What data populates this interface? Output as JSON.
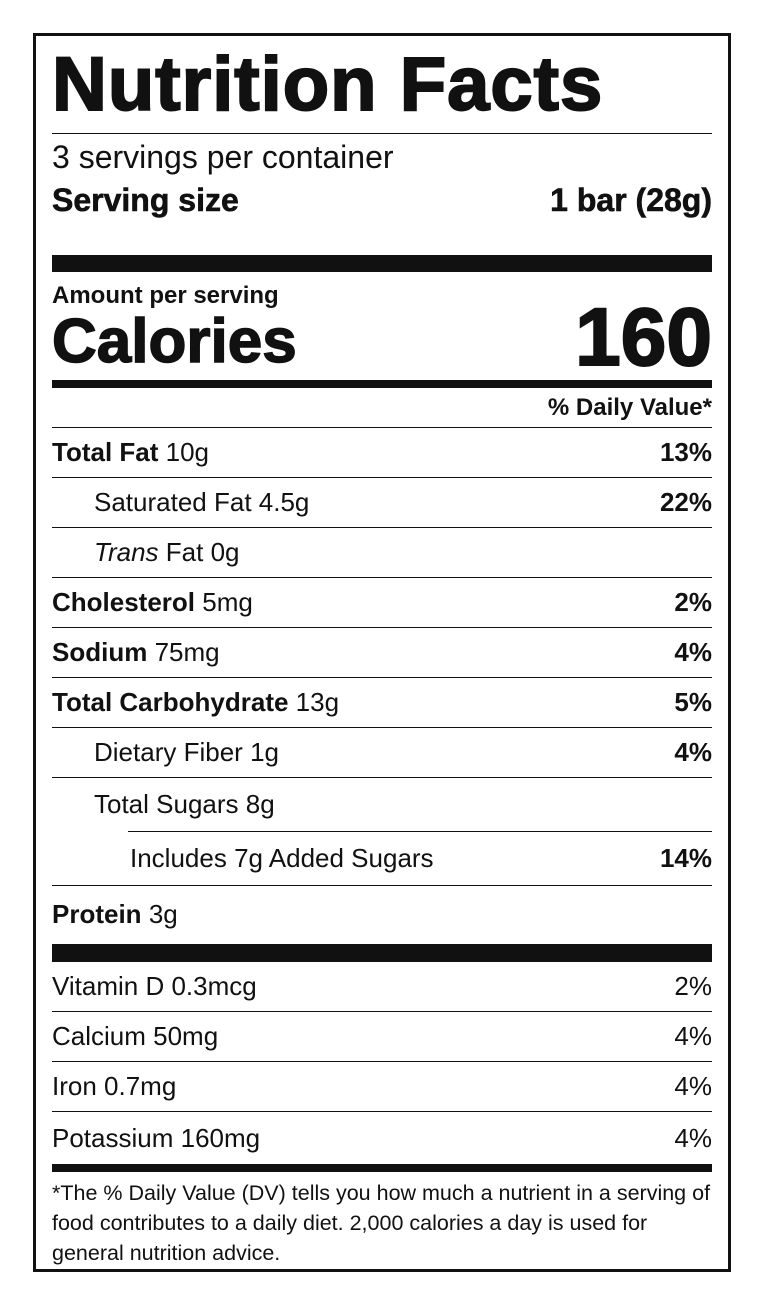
{
  "title": "Nutrition Facts",
  "servings_per_container": "3 servings per container",
  "serving_size": {
    "label": "Serving size",
    "value": "1 bar (28g)"
  },
  "amount_per_serving": "Amount per serving",
  "calories": {
    "label": "Calories",
    "value": "160"
  },
  "daily_value_header": "% Daily Value*",
  "nutrients": [
    {
      "name": "Total Fat",
      "amount": "10g",
      "dv": "13%"
    },
    {
      "name": "Saturated Fat",
      "amount": "4.5g",
      "dv": "22%"
    },
    {
      "name": "Trans",
      "name_rest": "Fat",
      "amount": "0g",
      "dv": ""
    },
    {
      "name": "Cholesterol",
      "amount": "5mg",
      "dv": "2%"
    },
    {
      "name": "Sodium",
      "amount": "75mg",
      "dv": "4%"
    },
    {
      "name": "Total Carbohydrate",
      "amount": "13g",
      "dv": "5%"
    },
    {
      "name": "Dietary Fiber",
      "amount": "1g",
      "dv": "4%"
    },
    {
      "name": "Total Sugars",
      "amount": "8g",
      "dv": ""
    },
    {
      "name": "Includes 7g Added Sugars",
      "amount": "",
      "dv": "14%"
    },
    {
      "name": "Protein",
      "amount": "3g",
      "dv": ""
    }
  ],
  "vitamins": [
    {
      "label": "Vitamin D 0.3mcg",
      "dv": "2%"
    },
    {
      "label": "Calcium 50mg",
      "dv": "4%"
    },
    {
      "label": "Iron 0.7mg",
      "dv": "4%"
    },
    {
      "label": "Potassium 160mg",
      "dv": "4%"
    }
  ],
  "footnote": "*The % Daily Value (DV) tells you how much a nutrient in a serving of food contributes to a daily diet. 2,000 calories a day is used for general nutrition advice."
}
